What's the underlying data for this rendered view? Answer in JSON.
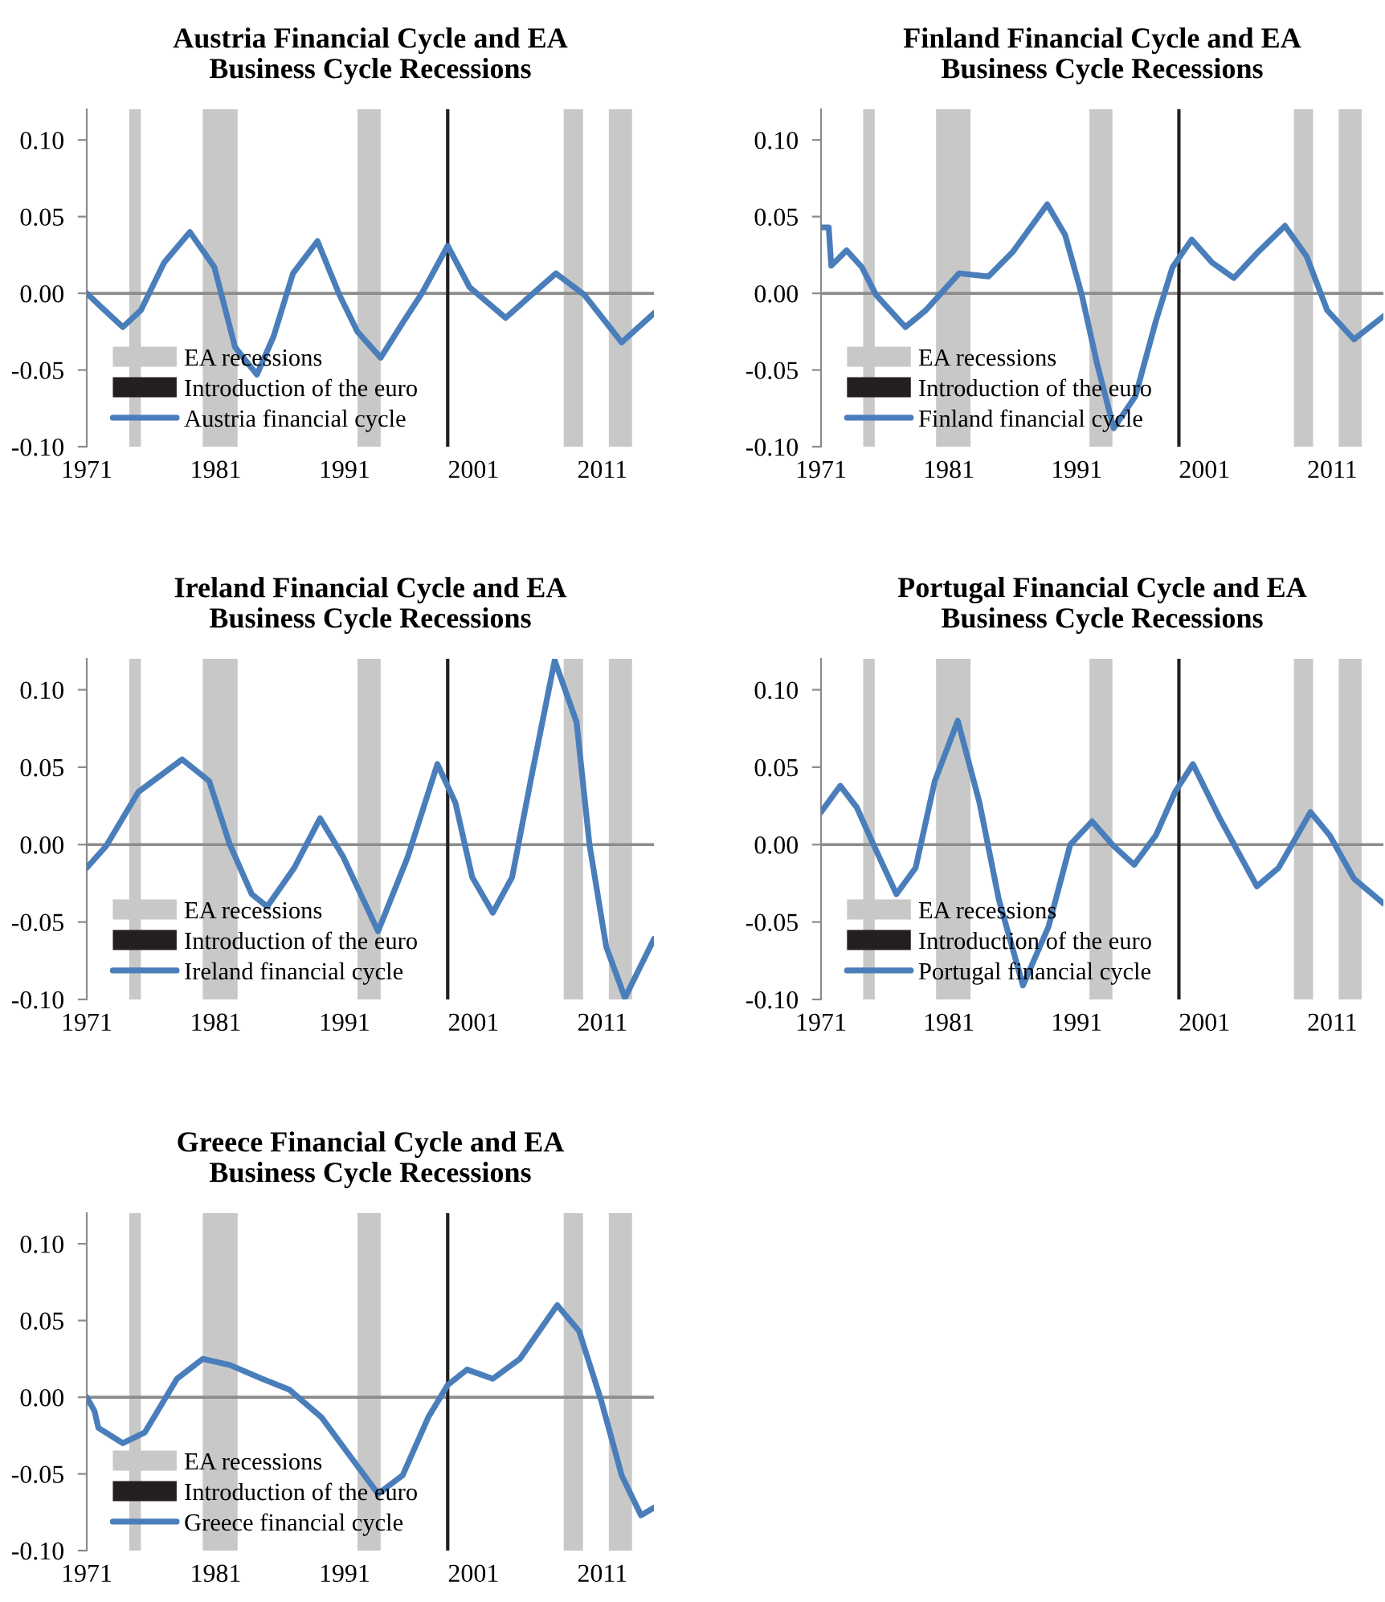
{
  "chart_data": [
    {
      "type": "line",
      "title": "Austria Financial Cycle and EA\nBusiness Cycle Recessions",
      "xlim": [
        1971,
        2015
      ],
      "ylim": [
        -0.1,
        0.12
      ],
      "xticks": [
        1971,
        1981,
        1991,
        2001,
        2011
      ],
      "yticks": [
        {
          "value": -0.1,
          "label": "-0.10"
        },
        {
          "value": -0.05,
          "label": "-0.05"
        },
        {
          "value": 0,
          "label": "0.00"
        },
        {
          "value": 0.05,
          "label": "0.05"
        },
        {
          "value": 0.1,
          "label": "0.10"
        }
      ],
      "legend": "bottom left",
      "grid": false,
      "bands": [
        {
          "axis": "x",
          "from": 1974.3,
          "to": 1975.2,
          "label": "EA recessions",
          "color": "#c8c8c8"
        },
        {
          "axis": "x",
          "from": 1980,
          "to": 1982.7,
          "color": "#c8c8c8"
        },
        {
          "axis": "x",
          "from": 1992,
          "to": 1993.8,
          "color": "#c8c8c8"
        },
        {
          "axis": "x",
          "from": 2008,
          "to": 2009.5,
          "color": "#c8c8c8"
        },
        {
          "axis": "x",
          "from": 2011.5,
          "to": 2013.3,
          "color": "#c8c8c8"
        }
      ],
      "ref_lines": [
        {
          "axis": "y",
          "value": 0,
          "color": "#8c8c8c"
        },
        {
          "axis": "x",
          "value": 1999,
          "label": "Introduction of the euro",
          "color": "#231f20"
        }
      ],
      "series": [
        {
          "name": "Austria financial cycle",
          "color": "#4a7ebb",
          "x": [
            1971.0,
            1972.0,
            1973.8,
            1975.2,
            1977.0,
            1979.0,
            1980.9,
            1982.5,
            1984.2,
            1985.5,
            1987.0,
            1988.9,
            1990.6,
            1992.0,
            1993.8,
            1995.6,
            1997.0,
            1999.0,
            2000.7,
            2003.5,
            2005.5,
            2007.4,
            2009.6,
            2012.5,
            2015.0
          ],
          "values": [
            0,
            -0.008,
            -0.022,
            -0.011,
            0.02,
            0.04,
            0.017,
            -0.035,
            -0.053,
            -0.028,
            0.013,
            0.034,
            -0.001,
            -0.025,
            -0.042,
            -0.018,
            0,
            0.031,
            0.004,
            -0.016,
            -0.001,
            0.013,
            -0.001,
            -0.032,
            -0.013
          ]
        }
      ]
    },
    {
      "type": "line",
      "title": "Finland Financial Cycle and EA\nBusiness Cycle Recessions",
      "xlim": [
        1971,
        2015
      ],
      "ylim": [
        -0.1,
        0.12
      ],
      "xticks": [
        1971,
        1981,
        1991,
        2001,
        2011
      ],
      "yticks": [
        {
          "value": -0.1,
          "label": "-0.10"
        },
        {
          "value": -0.05,
          "label": "-0.05"
        },
        {
          "value": 0,
          "label": "0.00"
        },
        {
          "value": 0.05,
          "label": "0.05"
        },
        {
          "value": 0.1,
          "label": "0.10"
        }
      ],
      "legend": "bottom left",
      "grid": false,
      "bands": [
        {
          "axis": "x",
          "from": 1974.3,
          "to": 1975.2,
          "label": "EA recessions",
          "color": "#c8c8c8"
        },
        {
          "axis": "x",
          "from": 1980,
          "to": 1982.7,
          "color": "#c8c8c8"
        },
        {
          "axis": "x",
          "from": 1992,
          "to": 1993.8,
          "color": "#c8c8c8"
        },
        {
          "axis": "x",
          "from": 2008,
          "to": 2009.5,
          "color": "#c8c8c8"
        },
        {
          "axis": "x",
          "from": 2011.5,
          "to": 2013.3,
          "color": "#c8c8c8"
        }
      ],
      "ref_lines": [
        {
          "axis": "y",
          "value": 0,
          "color": "#8c8c8c"
        },
        {
          "axis": "x",
          "value": 1999,
          "label": "Introduction of the euro",
          "color": "#231f20"
        }
      ],
      "series": [
        {
          "name": "Finland financial cycle",
          "color": "#4a7ebb",
          "x": [
            1971.0,
            1971.6,
            1971.8,
            1973.0,
            1974.2,
            1975.3,
            1977.6,
            1979.2,
            1981.8,
            1984.1,
            1986.0,
            1988.7,
            1990.1,
            1991.4,
            1992.6,
            1993.9,
            1995.6,
            1997.2,
            1998.5,
            2000.0,
            2001.6,
            2003.3,
            2005.2,
            2007.3,
            2009.0,
            2010.6,
            2012.7,
            2015.0
          ],
          "values": [
            0.043,
            0.043,
            0.018,
            0.028,
            0.017,
            -0.001,
            -0.022,
            -0.011,
            0.013,
            0.011,
            0.027,
            0.058,
            0.038,
            -0.001,
            -0.046,
            -0.088,
            -0.067,
            -0.018,
            0.017,
            0.035,
            0.02,
            0.01,
            0.027,
            0.044,
            0.024,
            -0.011,
            -0.03,
            -0.015
          ]
        }
      ]
    },
    {
      "type": "line",
      "title": "Ireland Financial Cycle and EA\nBusiness Cycle Recessions",
      "xlim": [
        1971,
        2015
      ],
      "ylim": [
        -0.1,
        0.12
      ],
      "xticks": [
        1971,
        1981,
        1991,
        2001,
        2011
      ],
      "yticks": [
        {
          "value": -0.1,
          "label": "-0.10"
        },
        {
          "value": -0.05,
          "label": "-0.05"
        },
        {
          "value": 0,
          "label": "0.00"
        },
        {
          "value": 0.05,
          "label": "0.05"
        },
        {
          "value": 0.1,
          "label": "0.10"
        }
      ],
      "legend": "bottom left",
      "grid": false,
      "bands": [
        {
          "axis": "x",
          "from": 1974.3,
          "to": 1975.2,
          "label": "EA recessions",
          "color": "#c8c8c8"
        },
        {
          "axis": "x",
          "from": 1980,
          "to": 1982.7,
          "color": "#c8c8c8"
        },
        {
          "axis": "x",
          "from": 1992,
          "to": 1993.8,
          "color": "#c8c8c8"
        },
        {
          "axis": "x",
          "from": 2008,
          "to": 2009.5,
          "color": "#c8c8c8"
        },
        {
          "axis": "x",
          "from": 2011.5,
          "to": 2013.3,
          "color": "#c8c8c8"
        }
      ],
      "ref_lines": [
        {
          "axis": "y",
          "value": 0,
          "color": "#8c8c8c"
        },
        {
          "axis": "x",
          "value": 1999,
          "label": "Introduction of the euro",
          "color": "#231f20"
        }
      ],
      "series": [
        {
          "name": "Ireland financial cycle",
          "color": "#4a7ebb",
          "x": [
            1971.0,
            1972.5,
            1975.0,
            1978.4,
            1980.5,
            1982.1,
            1983.8,
            1985.0,
            1987.1,
            1989.1,
            1990.9,
            1993.6,
            1995.9,
            1998.2,
            1999.6,
            2000.9,
            2002.5,
            2004.0,
            2005.5,
            2007.3,
            2009.0,
            2010.0,
            2011.3,
            2012.75,
            2015.0
          ],
          "values": [
            -0.015,
            -0.001,
            0.034,
            0.055,
            0.041,
            0,
            -0.032,
            -0.04,
            -0.015,
            0.017,
            -0.008,
            -0.056,
            -0.008,
            0.052,
            0.027,
            -0.021,
            -0.044,
            -0.021,
            0.044,
            0.119,
            0.079,
            0,
            -0.066,
            -0.099,
            -0.061
          ]
        }
      ]
    },
    {
      "type": "line",
      "title": "Portugal Financial Cycle and EA\nBusiness Cycle Recessions",
      "xlim": [
        1971,
        2015
      ],
      "ylim": [
        -0.1,
        0.12
      ],
      "xticks": [
        1971,
        1981,
        1991,
        2001,
        2011
      ],
      "yticks": [
        {
          "value": -0.1,
          "label": "-0.10"
        },
        {
          "value": -0.05,
          "label": "-0.05"
        },
        {
          "value": 0,
          "label": "0.00"
        },
        {
          "value": 0.05,
          "label": "0.05"
        },
        {
          "value": 0.1,
          "label": "0.10"
        }
      ],
      "legend": "bottom left",
      "grid": false,
      "bands": [
        {
          "axis": "x",
          "from": 1974.3,
          "to": 1975.2,
          "label": "EA recessions",
          "color": "#c8c8c8"
        },
        {
          "axis": "x",
          "from": 1980,
          "to": 1982.7,
          "color": "#c8c8c8"
        },
        {
          "axis": "x",
          "from": 1992,
          "to": 1993.8,
          "color": "#c8c8c8"
        },
        {
          "axis": "x",
          "from": 2008,
          "to": 2009.5,
          "color": "#c8c8c8"
        },
        {
          "axis": "x",
          "from": 2011.5,
          "to": 2013.3,
          "color": "#c8c8c8"
        }
      ],
      "ref_lines": [
        {
          "axis": "y",
          "value": 0,
          "color": "#8c8c8c"
        },
        {
          "axis": "x",
          "value": 1999,
          "label": "Introduction of the euro",
          "color": "#231f20"
        }
      ],
      "series": [
        {
          "name": "Portugal financial cycle",
          "color": "#4a7ebb",
          "x": [
            1971.0,
            1972.5,
            1973.8,
            1975.1,
            1976.9,
            1978.4,
            1979.9,
            1981.7,
            1983.4,
            1984.9,
            1986.8,
            1988.8,
            1990.5,
            1992.2,
            1993.9,
            1995.5,
            1997.2,
            1998.7,
            2000.1,
            2002.2,
            2005.1,
            2006.8,
            2009.3,
            2010.8,
            2012.7,
            2015.0
          ],
          "values": [
            0.021,
            0.038,
            0.024,
            0,
            -0.032,
            -0.015,
            0.041,
            0.08,
            0.027,
            -0.035,
            -0.091,
            -0.053,
            0,
            0.015,
            -0.001,
            -0.013,
            0.006,
            0.034,
            0.052,
            0.017,
            -0.027,
            -0.015,
            0.021,
            0.006,
            -0.022,
            -0.038
          ]
        }
      ]
    },
    {
      "type": "line",
      "title": "Greece Financial Cycle and EA\nBusiness Cycle Recessions",
      "xlim": [
        1971,
        2015
      ],
      "ylim": [
        -0.1,
        0.12
      ],
      "xticks": [
        1971,
        1981,
        1991,
        2001,
        2011
      ],
      "yticks": [
        {
          "value": -0.1,
          "label": "-0.10"
        },
        {
          "value": -0.05,
          "label": "-0.05"
        },
        {
          "value": 0,
          "label": "0.00"
        },
        {
          "value": 0.05,
          "label": "0.05"
        },
        {
          "value": 0.1,
          "label": "0.10"
        }
      ],
      "legend": "bottom left",
      "grid": false,
      "bands": [
        {
          "axis": "x",
          "from": 1974.3,
          "to": 1975.2,
          "label": "EA recessions",
          "color": "#c8c8c8"
        },
        {
          "axis": "x",
          "from": 1980,
          "to": 1982.7,
          "color": "#c8c8c8"
        },
        {
          "axis": "x",
          "from": 1992,
          "to": 1993.8,
          "color": "#c8c8c8"
        },
        {
          "axis": "x",
          "from": 2008,
          "to": 2009.5,
          "color": "#c8c8c8"
        },
        {
          "axis": "x",
          "from": 2011.5,
          "to": 2013.3,
          "color": "#c8c8c8"
        }
      ],
      "ref_lines": [
        {
          "axis": "y",
          "value": 0,
          "color": "#8c8c8c"
        },
        {
          "axis": "x",
          "value": 1999,
          "label": "Introduction of the euro",
          "color": "#231f20"
        }
      ],
      "series": [
        {
          "name": "Greece financial cycle",
          "color": "#4a7ebb",
          "x": [
            1971.0,
            1971.6,
            1971.9,
            1973.8,
            1975.5,
            1978.0,
            1980.0,
            1982.1,
            1984.6,
            1986.7,
            1989.2,
            1991.3,
            1993.6,
            1995.5,
            1997.5,
            1999.0,
            2000.5,
            2002.5,
            2004.6,
            2007.5,
            2009.2,
            2010.9,
            2012.5,
            2014.0,
            2015.0
          ],
          "values": [
            0,
            -0.009,
            -0.02,
            -0.03,
            -0.023,
            0.012,
            0.025,
            0.021,
            0.012,
            0.005,
            -0.013,
            -0.037,
            -0.063,
            -0.051,
            -0.013,
            0.008,
            0.018,
            0.012,
            0.025,
            0.06,
            0.043,
            -0.002,
            -0.051,
            -0.077,
            -0.072
          ]
        }
      ]
    }
  ]
}
